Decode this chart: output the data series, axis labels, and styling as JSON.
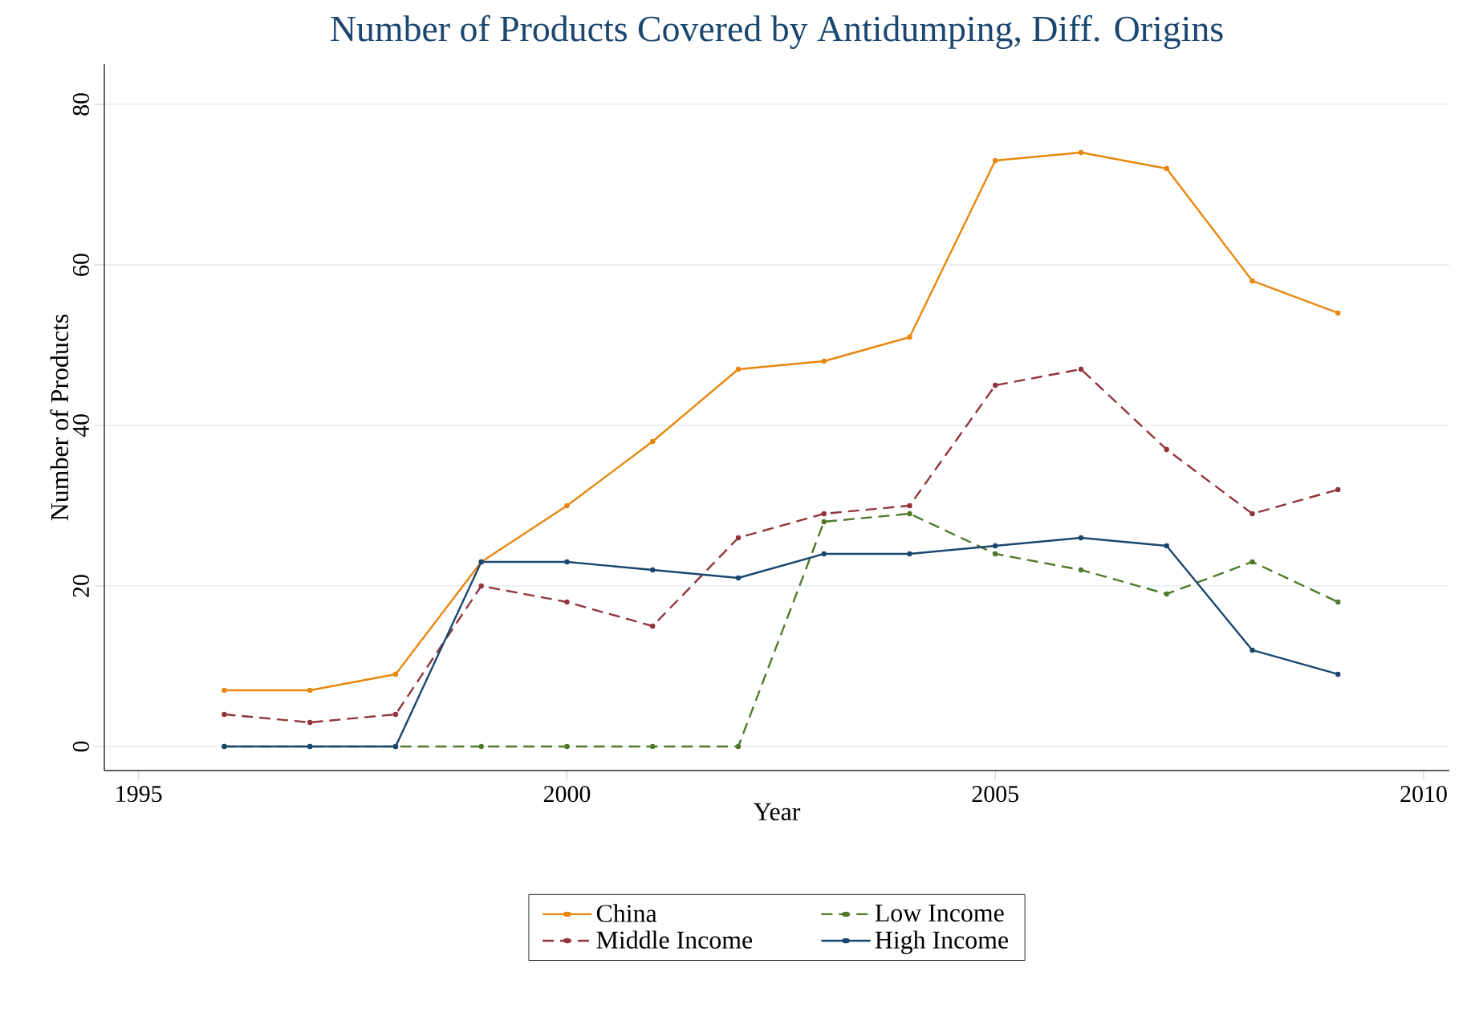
{
  "chart_data": {
    "type": "line",
    "title": "Number of Products Covered by Antidumping, Diff. Origins",
    "xlabel": "Year",
    "ylabel": "Number of Products",
    "x": [
      1996,
      1997,
      1998,
      1999,
      2000,
      2001,
      2002,
      2003,
      2004,
      2005,
      2006,
      2007,
      2008,
      2009
    ],
    "series": [
      {
        "name": "China",
        "color": "#e8870e",
        "line_style": "solid",
        "values": [
          7,
          7,
          9,
          23,
          30,
          38,
          47,
          48,
          51,
          73,
          74,
          72,
          58,
          54
        ]
      },
      {
        "name": "Low Income",
        "color": "#4f7a28",
        "line_style": "dashed",
        "values": [
          0,
          0,
          0,
          0,
          0,
          0,
          0,
          28,
          29,
          24,
          22,
          19,
          23,
          18
        ]
      },
      {
        "name": "Middle Income",
        "color": "#90353b",
        "line_style": "dashed",
        "values": [
          4,
          3,
          4,
          20,
          18,
          15,
          26,
          29,
          30,
          45,
          47,
          37,
          29,
          32
        ]
      },
      {
        "name": "High Income",
        "color": "#1a476f",
        "line_style": "solid",
        "values": [
          0,
          0,
          0,
          23,
          23,
          22,
          21,
          24,
          24,
          25,
          26,
          25,
          12,
          9
        ]
      }
    ],
    "xlim": [
      1994.6,
      2010.3
    ],
    "ylim": [
      -3,
      85
    ],
    "xticks": [
      1995,
      2000,
      2005,
      2010
    ],
    "yticks": [
      0,
      20,
      40,
      60,
      80
    ],
    "grid": "y",
    "legend": "bottom",
    "marker": "circle"
  }
}
